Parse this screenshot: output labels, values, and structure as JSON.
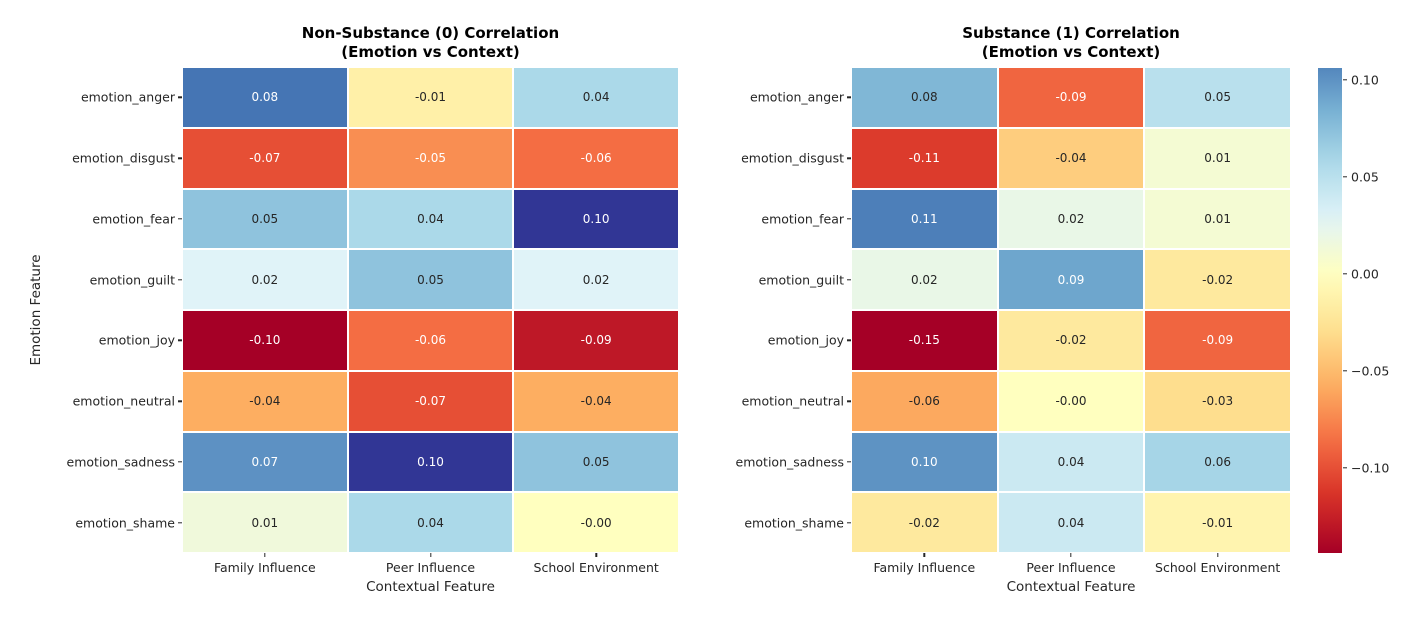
{
  "figure": {
    "background": "#ffffff"
  },
  "chart_data": [
    {
      "type": "heatmap",
      "title_line1": "Non-Substance (0) Correlation",
      "title_line2": "(Emotion vs Context)",
      "xlabel": "Contextual Feature",
      "ylabel": "Emotion Feature",
      "columns": [
        "Family Influence",
        "Peer Influence",
        "School Environment"
      ],
      "rows": [
        "emotion_anger",
        "emotion_disgust",
        "emotion_fear",
        "emotion_guilt",
        "emotion_joy",
        "emotion_neutral",
        "emotion_sadness",
        "emotion_shame"
      ],
      "values": [
        [
          0.08,
          -0.01,
          0.04
        ],
        [
          -0.07,
          -0.05,
          -0.06
        ],
        [
          0.05,
          0.04,
          0.1
        ],
        [
          0.02,
          0.05,
          0.02
        ],
        [
          -0.1,
          -0.06,
          -0.09
        ],
        [
          -0.04,
          -0.07,
          -0.04
        ],
        [
          0.07,
          0.1,
          0.05
        ],
        [
          0.01,
          0.04,
          -0.0
        ]
      ],
      "labels": [
        [
          "0.08",
          "-0.01",
          "0.04"
        ],
        [
          "-0.07",
          "-0.05",
          "-0.06"
        ],
        [
          "0.05",
          "0.04",
          "0.10"
        ],
        [
          "0.02",
          "0.05",
          "0.02"
        ],
        [
          "-0.10",
          "-0.06",
          "-0.09"
        ],
        [
          "-0.04",
          "-0.07",
          "-0.04"
        ],
        [
          "0.07",
          "0.10",
          "0.05"
        ],
        [
          "0.01",
          "0.04",
          "-0.00"
        ]
      ],
      "vmin": -0.1,
      "vmax": 0.1,
      "grid": false,
      "legend": "none"
    },
    {
      "type": "heatmap",
      "title_line1": "Substance (1) Correlation",
      "title_line2": "(Emotion vs Context)",
      "xlabel": "Contextual Feature",
      "ylabel": "",
      "columns": [
        "Family Influence",
        "Peer Influence",
        "School Environment"
      ],
      "rows": [
        "emotion_anger",
        "emotion_disgust",
        "emotion_fear",
        "emotion_guilt",
        "emotion_joy",
        "emotion_neutral",
        "emotion_sadness",
        "emotion_shame"
      ],
      "values": [
        [
          0.08,
          -0.09,
          0.05
        ],
        [
          -0.11,
          -0.04,
          0.01
        ],
        [
          0.11,
          0.02,
          0.01
        ],
        [
          0.02,
          0.09,
          -0.02
        ],
        [
          -0.15,
          -0.02,
          -0.09
        ],
        [
          -0.06,
          -0.0,
          -0.03
        ],
        [
          0.1,
          0.04,
          0.06
        ],
        [
          -0.02,
          0.04,
          -0.01
        ]
      ],
      "labels": [
        [
          "0.08",
          "-0.09",
          "0.05"
        ],
        [
          "-0.11",
          "-0.04",
          "0.01"
        ],
        [
          "0.11",
          "0.02",
          "0.01"
        ],
        [
          "0.02",
          "0.09",
          "-0.02"
        ],
        [
          "-0.15",
          "-0.02",
          "-0.09"
        ],
        [
          "-0.06",
          "-0.00",
          "-0.03"
        ],
        [
          "0.10",
          "0.04",
          "0.06"
        ],
        [
          "-0.02",
          "0.04",
          "-0.01"
        ]
      ],
      "vmin": -0.144,
      "vmax": 0.106,
      "grid": false,
      "legend": "colorbar-right"
    }
  ],
  "colorbar": {
    "tick_labels": [
      "0.10",
      "0.05",
      "0.00",
      "−0.05",
      "−0.10"
    ],
    "tick_values": [
      0.1,
      0.05,
      0.0,
      -0.05,
      -0.1
    ]
  },
  "colormap": {
    "name": "RdYlBu",
    "anchors": [
      "#a50026",
      "#d73027",
      "#f46d43",
      "#fdae61",
      "#fee090",
      "#ffffbf",
      "#e0f3f8",
      "#abd9e9",
      "#74add1",
      "#4575b4",
      "#313695"
    ]
  },
  "text_colors": {
    "dark": "#262626",
    "light": "#ffffff"
  }
}
